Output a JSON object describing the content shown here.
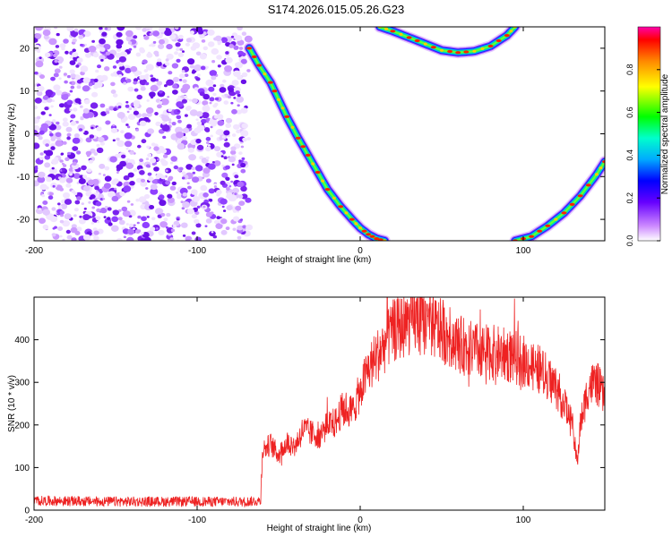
{
  "title": "S174.2026.015.05.26.G23",
  "chart_data": [
    {
      "type": "heatmap",
      "name": "spectrogram",
      "xlabel": "Height of straight line (km)",
      "ylabel": "Frequency (Hz)",
      "xlim": [
        -200,
        150
      ],
      "ylim": [
        -25,
        25
      ],
      "xticks": [
        -200,
        -100,
        0,
        100
      ],
      "yticks": [
        -20,
        -10,
        0,
        10,
        20
      ],
      "colorbar": {
        "label": "Normalized spectral amplitude",
        "range": [
          0,
          1
        ],
        "ticks": [
          0.0,
          0.2,
          0.4,
          0.6,
          0.8
        ]
      },
      "noise_region_x": [
        -200,
        -68
      ],
      "curves": [
        {
          "name": "descending-track",
          "x": [
            -68,
            -62,
            -55,
            -50,
            -45,
            -38,
            -32,
            -26,
            -20,
            -12,
            -5,
            0,
            5,
            10,
            15
          ],
          "y": [
            20,
            16,
            12,
            8,
            4,
            -1,
            -5,
            -9,
            -13,
            -17,
            -20,
            -22,
            -23.5,
            -24.5,
            -25
          ]
        },
        {
          "name": "upper-arc",
          "x": [
            12,
            20,
            30,
            40,
            50,
            60,
            70,
            80,
            90,
            95
          ],
          "y": [
            25,
            24,
            22.5,
            21,
            19.5,
            19,
            19.3,
            20.5,
            23,
            25
          ]
        },
        {
          "name": "lower-right-arc",
          "x": [
            95,
            105,
            115,
            125,
            135,
            145,
            150
          ],
          "y": [
            -25,
            -24,
            -21.5,
            -18.5,
            -14.5,
            -9.5,
            -6.5
          ]
        }
      ]
    },
    {
      "type": "line",
      "name": "snr",
      "xlabel": "Height of straight line (km)",
      "ylabel": "SNR (10 * v/v)",
      "xlim": [
        -200,
        150
      ],
      "ylim": [
        0,
        500
      ],
      "xticks": [
        -200,
        -100,
        0,
        100
      ],
      "yticks": [
        0,
        100,
        200,
        300,
        400
      ],
      "series": [
        {
          "name": "SNR",
          "color": "#ee2222",
          "x": [
            -200,
            -150,
            -100,
            -70,
            -61,
            -60,
            -55,
            -50,
            -45,
            -40,
            -35,
            -30,
            -25,
            -20,
            -15,
            -12,
            -10,
            -5,
            0,
            5,
            10,
            15,
            20,
            25,
            30,
            35,
            40,
            45,
            50,
            60,
            70,
            80,
            90,
            100,
            110,
            120,
            125,
            130,
            133,
            135,
            140,
            145,
            150
          ],
          "y": [
            22,
            20,
            20,
            20,
            22,
            140,
            155,
            130,
            160,
            150,
            190,
            180,
            175,
            200,
            205,
            230,
            240,
            230,
            280,
            330,
            360,
            390,
            420,
            430,
            440,
            445,
            440,
            430,
            420,
            390,
            375,
            370,
            365,
            350,
            330,
            290,
            250,
            200,
            110,
            200,
            290,
            300,
            260
          ]
        }
      ]
    }
  ],
  "colors": {
    "axis": "#000000",
    "snr_line": "#ee2222",
    "noise": "#7a22ee"
  }
}
